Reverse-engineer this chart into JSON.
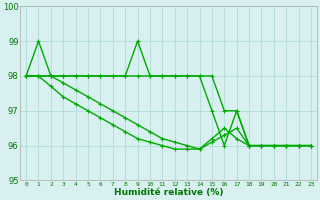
{
  "series": [
    {
      "x": [
        0,
        1,
        2,
        3,
        4,
        5,
        6,
        7,
        8,
        9,
        10,
        11,
        12,
        13,
        14,
        15,
        16,
        17,
        18,
        19,
        20,
        21,
        22,
        23
      ],
      "y": [
        98,
        98,
        98,
        98,
        98,
        98,
        98,
        98,
        98,
        98,
        98,
        98,
        98,
        98,
        98,
        98,
        97,
        97,
        96,
        96,
        96,
        96,
        96,
        96
      ]
    },
    {
      "x": [
        0,
        1,
        2,
        3,
        4,
        5,
        6,
        7,
        8,
        9,
        10,
        11,
        12,
        13,
        14,
        15,
        16,
        17,
        18,
        19,
        20,
        21,
        22,
        23
      ],
      "y": [
        98,
        99,
        98,
        98,
        98,
        98,
        98,
        98,
        98,
        99,
        98,
        98,
        98,
        98,
        98,
        97,
        96,
        97,
        96,
        96,
        96,
        96,
        96,
        96
      ]
    },
    {
      "x": [
        0,
        1,
        2,
        3,
        4,
        5,
        6,
        7,
        8,
        9,
        10,
        11,
        12,
        13,
        14,
        15,
        16,
        17,
        18,
        19,
        20,
        21,
        22,
        23
      ],
      "y": [
        98,
        98,
        98,
        97.8,
        97.6,
        97.4,
        97.2,
        97.0,
        96.8,
        96.6,
        96.4,
        96.2,
        96.1,
        96.0,
        95.9,
        96.1,
        96.3,
        96.5,
        96,
        96,
        96,
        96,
        96,
        96
      ]
    },
    {
      "x": [
        0,
        1,
        2,
        3,
        4,
        5,
        6,
        7,
        8,
        9,
        10,
        11,
        12,
        13,
        14,
        15,
        16,
        17,
        18,
        19,
        20,
        21,
        22,
        23
      ],
      "y": [
        98,
        98,
        97.7,
        97.4,
        97.2,
        97.0,
        96.8,
        96.6,
        96.4,
        96.2,
        96.1,
        96.0,
        95.9,
        95.9,
        95.9,
        96.2,
        96.5,
        96.2,
        96,
        96,
        96,
        96,
        96,
        96
      ]
    }
  ],
  "line_color": "#00aa00",
  "marker": "+",
  "marker_size": 3,
  "marker_edge_width": 0.8,
  "background_color": "#d8f0f0",
  "grid_color": "#b8dede",
  "xlabel": "Humidité relative (%)",
  "ylim": [
    95,
    100
  ],
  "xlim": [
    -0.5,
    23.5
  ],
  "yticks": [
    95,
    96,
    97,
    98,
    99,
    100
  ],
  "xtick_labels": [
    "0",
    "1",
    "2",
    "3",
    "4",
    "5",
    "6",
    "7",
    "8",
    "9",
    "10",
    "11",
    "12",
    "13",
    "14",
    "15",
    "16",
    "17",
    "18",
    "19",
    "20",
    "21",
    "22",
    "23"
  ],
  "xlabel_color": "#007700",
  "tick_color": "#007700",
  "line_width": 1.0,
  "figsize": [
    3.2,
    2.0
  ],
  "dpi": 100
}
